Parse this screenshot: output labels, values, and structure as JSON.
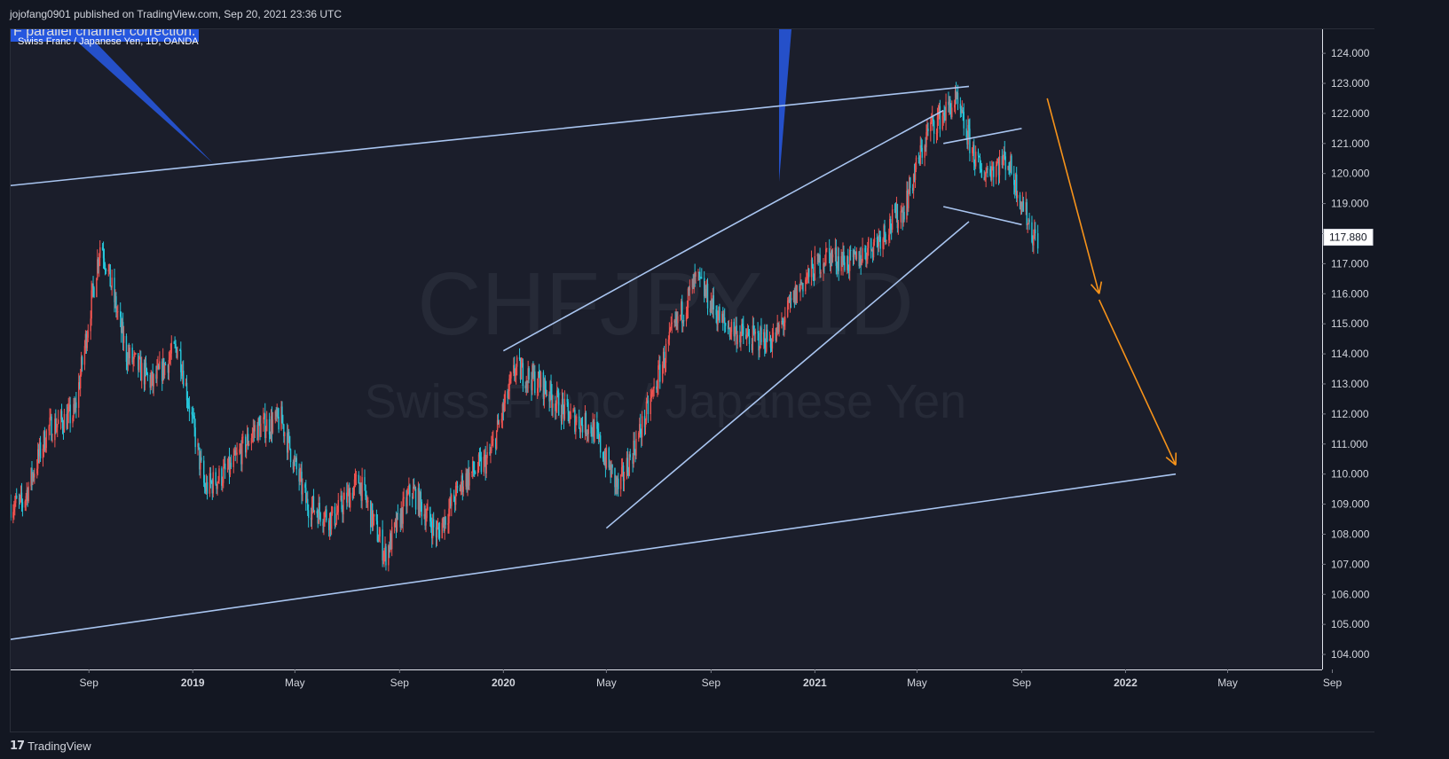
{
  "header": {
    "published": "jojofang0901 published on TradingView.com, Sep 20, 2021 23:36 UTC"
  },
  "legend": {
    "note": "F parallel channel correction.",
    "symbol": "Swiss Franc / Japanese Yen, 1D, OANDA"
  },
  "watermark": {
    "ticker": "CHFJPY, 1D",
    "name": "Swiss Franc / Japanese Yen"
  },
  "footer": {
    "brand_logo": "17",
    "brand_name": "TradingView"
  },
  "colors": {
    "background": "#131722",
    "up": "#ef5350",
    "down": "#26c6da",
    "trendline": "#a9c5f0",
    "arrow": "#f7931a",
    "callout": "#2962ff"
  },
  "chart_data": {
    "type": "candlestick",
    "symbol": "CHFJPY",
    "interval": "1D",
    "y_axis": {
      "ticks": [
        "104.000",
        "105.000",
        "106.000",
        "107.000",
        "108.000",
        "109.000",
        "110.000",
        "111.000",
        "112.000",
        "113.000",
        "114.000",
        "115.000",
        "116.000",
        "117.000",
        "118.000",
        "119.000",
        "120.000",
        "121.000",
        "122.000",
        "123.000",
        "124.000"
      ],
      "range": [
        103.5,
        124.8
      ]
    },
    "x_axis": {
      "ticks": [
        "Sep",
        "2019",
        "May",
        "Sep",
        "2020",
        "May",
        "Sep",
        "2021",
        "May",
        "Sep",
        "2022",
        "May",
        "Sep"
      ],
      "bold": [
        "2019",
        "2020",
        "2021",
        "2022"
      ]
    },
    "last_price": "117.880",
    "series": [
      {
        "values": [
          [
            "2018-06",
            109.0
          ],
          [
            "2018-07",
            111.5
          ],
          [
            "2018-08",
            112.0
          ],
          [
            "2018-09",
            117.8
          ],
          [
            "2018-10",
            114.0
          ],
          [
            "2018-11",
            113.0
          ],
          [
            "2018-12",
            114.3
          ],
          [
            "2019-01",
            109.5
          ],
          [
            "2019-02",
            110.2
          ],
          [
            "2019-03",
            111.5
          ],
          [
            "2019-04",
            111.8
          ],
          [
            "2019-05",
            109.0
          ],
          [
            "2019-06",
            108.5
          ],
          [
            "2019-07",
            109.8
          ],
          [
            "2019-08",
            107.3
          ],
          [
            "2019-09",
            109.5
          ],
          [
            "2019-10",
            108.0
          ],
          [
            "2019-11",
            109.8
          ],
          [
            "2019-12",
            110.5
          ],
          [
            "2020-01",
            113.5
          ],
          [
            "2020-02",
            113.0
          ],
          [
            "2020-03",
            112.0
          ],
          [
            "2020-04",
            111.5
          ],
          [
            "2020-05",
            109.5
          ],
          [
            "2020-06",
            111.8
          ],
          [
            "2020-07",
            114.5
          ],
          [
            "2020-08",
            116.5
          ],
          [
            "2020-09",
            115.0
          ],
          [
            "2020-10",
            114.5
          ],
          [
            "2020-11",
            114.5
          ],
          [
            "2020-12",
            116.3
          ],
          [
            "2021-01",
            117.3
          ],
          [
            "2021-02",
            117.0
          ],
          [
            "2021-03",
            117.8
          ],
          [
            "2021-04",
            118.8
          ],
          [
            "2021-05",
            121.5
          ],
          [
            "2021-06",
            122.4
          ],
          [
            "2021-07",
            120.0
          ],
          [
            "2021-08",
            120.5
          ],
          [
            "2021-09",
            117.9
          ]
        ]
      }
    ],
    "drawings": [
      {
        "type": "trendline",
        "from": [
          "2018-06-01",
          119.6
        ],
        "to": [
          "2021-07-01",
          122.9
        ]
      },
      {
        "type": "trendline",
        "from": [
          "2018-06-01",
          104.5
        ],
        "to": [
          "2022-03-01",
          110.0
        ]
      },
      {
        "type": "trendline",
        "from": [
          "2020-01-01",
          114.1
        ],
        "to": [
          "2020-09-01",
          117.9
        ]
      },
      {
        "type": "trendline",
        "from": [
          "2020-05-01",
          108.2
        ],
        "to": [
          "2021-07-01",
          118.4
        ]
      },
      {
        "type": "trendline",
        "from": [
          "2020-09-01",
          117.9
        ],
        "to": [
          "2021-06-01",
          122.1
        ]
      },
      {
        "type": "trendline",
        "from": [
          "2021-06-01",
          121.0
        ],
        "to": [
          "2021-09-01",
          121.5
        ]
      },
      {
        "type": "trendline",
        "from": [
          "2021-06-01",
          118.9
        ],
        "to": [
          "2021-09-01",
          118.3
        ]
      },
      {
        "type": "arrow",
        "from": [
          "2021-10-01",
          122.5
        ],
        "to": [
          "2021-12-01",
          116.0
        ]
      },
      {
        "type": "arrow",
        "from": [
          "2021-12-01",
          115.8
        ],
        "to": [
          "2022-03-01",
          110.3
        ]
      }
    ]
  }
}
